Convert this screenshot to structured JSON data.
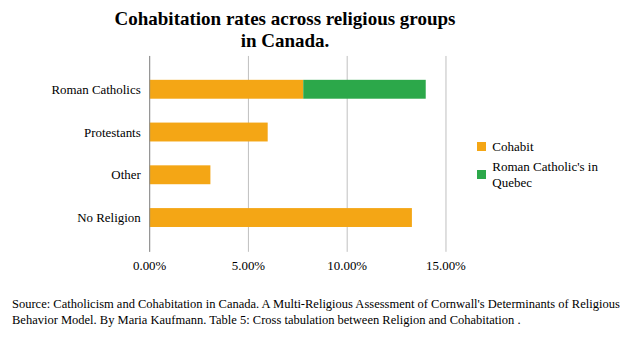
{
  "chart_data": {
    "type": "bar",
    "orientation": "horizontal",
    "stacked": true,
    "title": "Cohabitation rates across religious groups in Canada.",
    "caption": "Source: Catholicism and Cohabitation in Canada. A Multi-Religious Assessment of Cornwall's Determinants of Religious Behavior Model. By Maria Kaufmann. Table 5: Cross tabulation between Religion and Cohabitation .",
    "categories": [
      "Roman Catholics",
      "Protestants",
      "Other",
      "No Religion"
    ],
    "series": [
      {
        "name": "Cohabit",
        "color": "#f4a615",
        "values": [
          7.8,
          6.0,
          3.1,
          13.3
        ]
      },
      {
        "name": "Roman Catholic's in Quebec",
        "color": "#2ca84a",
        "values": [
          6.2,
          null,
          null,
          null
        ]
      }
    ],
    "xlim": [
      0,
      15
    ],
    "xticks": [
      {
        "value": 0,
        "label": "0.00%"
      },
      {
        "value": 5,
        "label": "5.00%"
      },
      {
        "value": 10,
        "label": "10.00%"
      },
      {
        "value": 15,
        "label": "15.00%"
      }
    ],
    "grid": true,
    "legend": "right"
  }
}
